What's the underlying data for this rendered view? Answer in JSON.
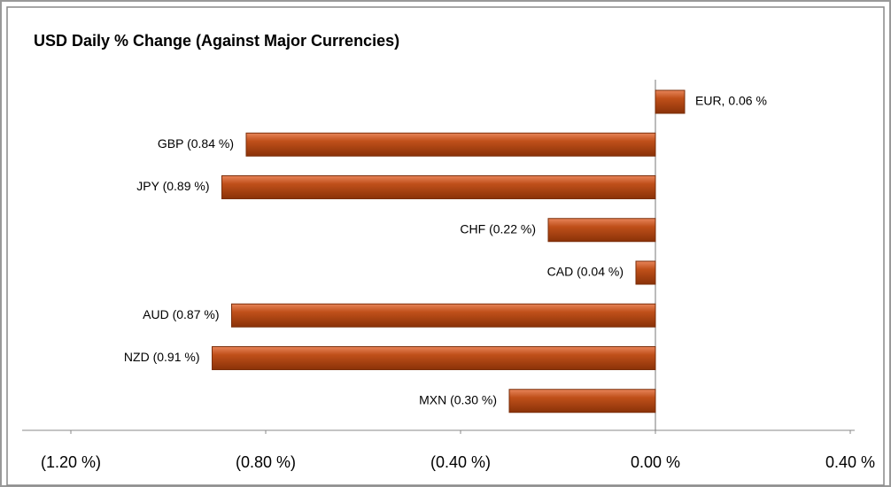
{
  "chart_data": {
    "type": "bar",
    "orientation": "horizontal",
    "title": "USD Daily % Change (Against Major Currencies)",
    "values": [
      0.06,
      -0.84,
      -0.89,
      -0.22,
      -0.04,
      -0.87,
      -0.91,
      -0.3
    ],
    "value_labels": [
      "EUR, 0.06 %",
      "GBP (0.84 %)",
      "JPY (0.89 %)",
      "CHF (0.22 %)",
      "CAD (0.04 %)",
      "AUD (0.87 %)",
      "NZD (0.91 %)",
      "MXN (0.30 %)"
    ],
    "color": "#c0501a",
    "xlim": [
      -1.2,
      0.4
    ],
    "xticks": [
      {
        "value": -1.2,
        "label": "(1.20 %)"
      },
      {
        "value": -0.8,
        "label": "(0.80 %)"
      },
      {
        "value": -0.4,
        "label": "(0.40 %)"
      },
      {
        "value": 0,
        "label": "0.00 %"
      },
      {
        "value": 0.4,
        "label": "0.40 %"
      }
    ]
  }
}
